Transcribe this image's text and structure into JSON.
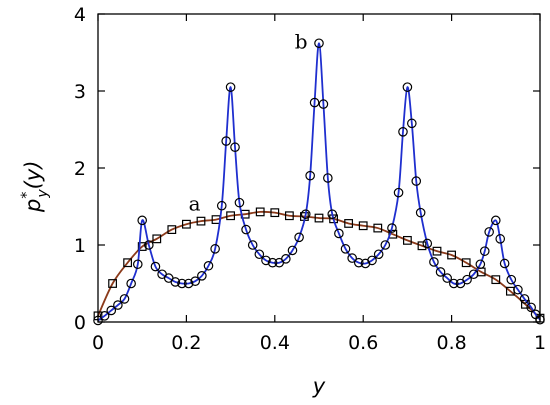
{
  "chart_data": {
    "type": "line",
    "xlabel": "y",
    "ylabel": "p*y(y)",
    "ylabel_parts": {
      "base": "p",
      "sup": "*",
      "sub": "y",
      "arg": "(y)"
    },
    "xlim": [
      0,
      1
    ],
    "ylim": [
      0,
      4
    ],
    "x_ticks": [
      0,
      0.2,
      0.4,
      0.6,
      0.8,
      1
    ],
    "x_tick_labels": [
      "0",
      "0.2",
      "0.4",
      "0.6",
      "0.8",
      "1"
    ],
    "y_ticks": [
      0,
      1,
      2,
      3,
      4
    ],
    "y_tick_labels": [
      "0",
      "1",
      "2",
      "3",
      "4"
    ],
    "grid": false,
    "annotations": [
      {
        "text": "a",
        "x": 0.205,
        "y": 1.45
      },
      {
        "text": "b",
        "x": 0.445,
        "y": 3.55
      }
    ],
    "series": [
      {
        "id": "a",
        "marker": "square",
        "line_color": "#8b3a1a",
        "points": [
          [
            0,
            0.08
          ],
          [
            0.033,
            0.5
          ],
          [
            0.067,
            0.77
          ],
          [
            0.1,
            0.98
          ],
          [
            0.133,
            1.08
          ],
          [
            0.167,
            1.2
          ],
          [
            0.2,
            1.27
          ],
          [
            0.233,
            1.31
          ],
          [
            0.267,
            1.33
          ],
          [
            0.3,
            1.38
          ],
          [
            0.333,
            1.4
          ],
          [
            0.367,
            1.43
          ],
          [
            0.4,
            1.42
          ],
          [
            0.433,
            1.38
          ],
          [
            0.467,
            1.37
          ],
          [
            0.5,
            1.35
          ],
          [
            0.533,
            1.34
          ],
          [
            0.567,
            1.28
          ],
          [
            0.6,
            1.25
          ],
          [
            0.633,
            1.22
          ],
          [
            0.667,
            1.14
          ],
          [
            0.7,
            1.06
          ],
          [
            0.733,
            0.99
          ],
          [
            0.767,
            0.92
          ],
          [
            0.8,
            0.87
          ],
          [
            0.833,
            0.77
          ],
          [
            0.867,
            0.65
          ],
          [
            0.9,
            0.55
          ],
          [
            0.933,
            0.4
          ],
          [
            0.967,
            0.23
          ],
          [
            1.0,
            0.05
          ]
        ]
      },
      {
        "id": "b",
        "marker": "circle",
        "line_color": "#1f2fcf",
        "points": [
          [
            0,
            0.02
          ],
          [
            0.015,
            0.08
          ],
          [
            0.03,
            0.15
          ],
          [
            0.045,
            0.22
          ],
          [
            0.06,
            0.3
          ],
          [
            0.075,
            0.5
          ],
          [
            0.09,
            0.75
          ],
          [
            0.1,
            1.32
          ],
          [
            0.115,
            1.0
          ],
          [
            0.13,
            0.72
          ],
          [
            0.145,
            0.62
          ],
          [
            0.16,
            0.57
          ],
          [
            0.175,
            0.52
          ],
          [
            0.19,
            0.5
          ],
          [
            0.205,
            0.5
          ],
          [
            0.22,
            0.53
          ],
          [
            0.235,
            0.6
          ],
          [
            0.25,
            0.73
          ],
          [
            0.265,
            0.95
          ],
          [
            0.28,
            1.51
          ],
          [
            0.29,
            2.35
          ],
          [
            0.3,
            3.05
          ],
          [
            0.31,
            2.27
          ],
          [
            0.32,
            1.55
          ],
          [
            0.335,
            1.2
          ],
          [
            0.35,
            1.0
          ],
          [
            0.365,
            0.88
          ],
          [
            0.38,
            0.8
          ],
          [
            0.395,
            0.77
          ],
          [
            0.41,
            0.77
          ],
          [
            0.425,
            0.82
          ],
          [
            0.44,
            0.93
          ],
          [
            0.455,
            1.1
          ],
          [
            0.47,
            1.4
          ],
          [
            0.48,
            1.9
          ],
          [
            0.49,
            2.85
          ],
          [
            0.5,
            3.62
          ],
          [
            0.51,
            2.83
          ],
          [
            0.52,
            1.87
          ],
          [
            0.53,
            1.4
          ],
          [
            0.545,
            1.15
          ],
          [
            0.56,
            0.95
          ],
          [
            0.575,
            0.83
          ],
          [
            0.59,
            0.77
          ],
          [
            0.605,
            0.76
          ],
          [
            0.62,
            0.8
          ],
          [
            0.635,
            0.88
          ],
          [
            0.65,
            1.0
          ],
          [
            0.665,
            1.22
          ],
          [
            0.68,
            1.68
          ],
          [
            0.69,
            2.47
          ],
          [
            0.7,
            3.05
          ],
          [
            0.71,
            2.58
          ],
          [
            0.72,
            1.83
          ],
          [
            0.73,
            1.42
          ],
          [
            0.745,
            1.02
          ],
          [
            0.76,
            0.78
          ],
          [
            0.775,
            0.65
          ],
          [
            0.79,
            0.57
          ],
          [
            0.805,
            0.5
          ],
          [
            0.82,
            0.5
          ],
          [
            0.835,
            0.55
          ],
          [
            0.85,
            0.62
          ],
          [
            0.865,
            0.75
          ],
          [
            0.875,
            0.92
          ],
          [
            0.885,
            1.17
          ],
          [
            0.9,
            1.32
          ],
          [
            0.91,
            1.08
          ],
          [
            0.92,
            0.76
          ],
          [
            0.935,
            0.55
          ],
          [
            0.95,
            0.42
          ],
          [
            0.965,
            0.3
          ],
          [
            0.98,
            0.19
          ],
          [
            0.99,
            0.1
          ],
          [
            1.0,
            0.03
          ]
        ]
      }
    ]
  }
}
